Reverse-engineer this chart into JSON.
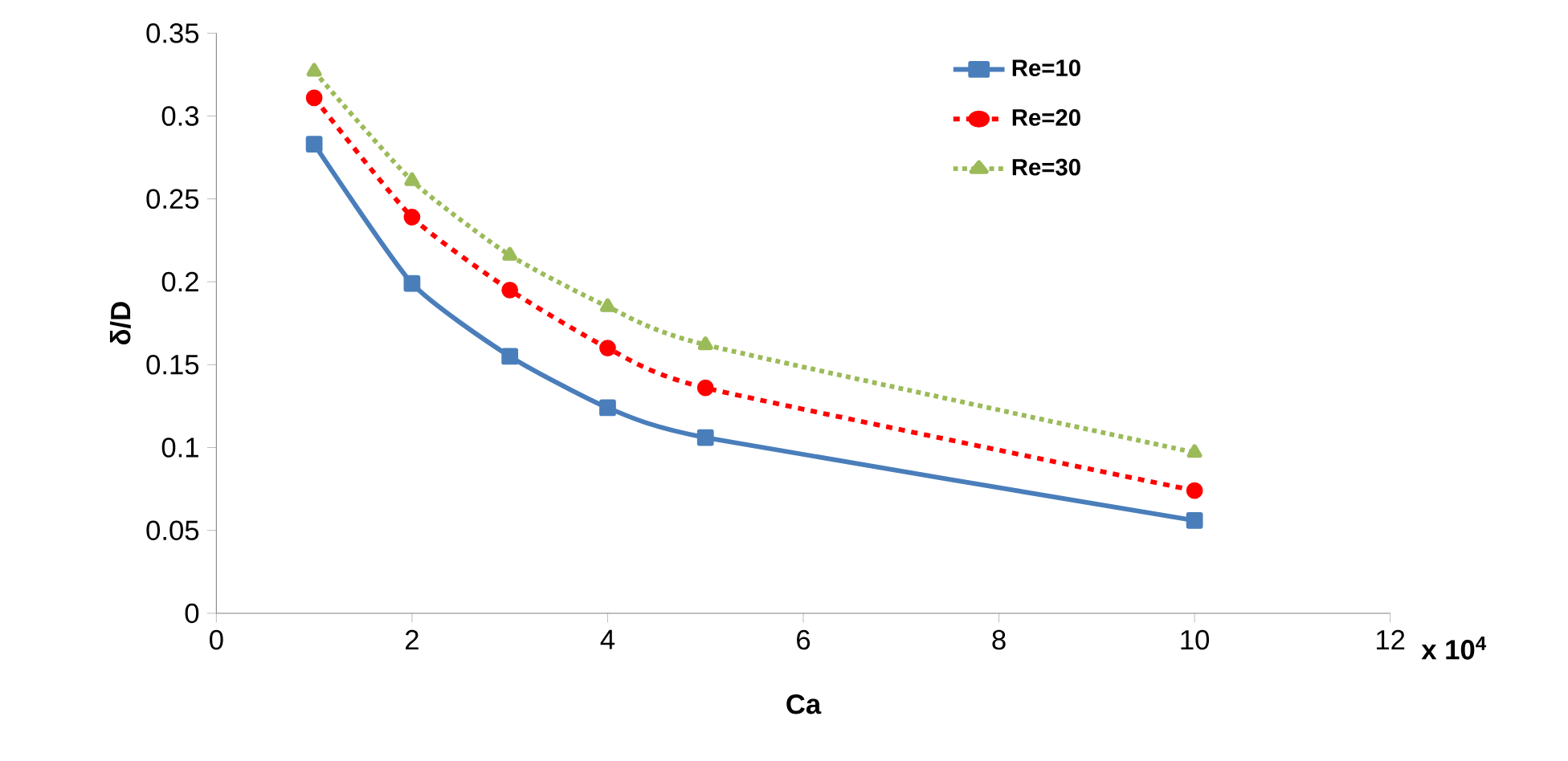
{
  "chart_data": {
    "type": "line",
    "xlabel": "Ca",
    "ylabel": "δ/D",
    "annotations": [
      "x 10$^{4}$"
    ],
    "x": [
      1,
      2,
      3,
      4,
      5,
      10
    ],
    "series": [
      {
        "name": "Re=10",
        "color": "#4a7ebb",
        "values": [
          0.283,
          0.199,
          0.155,
          0.124,
          0.106,
          0.056
        ],
        "marker": "square",
        "line_style": "solid"
      },
      {
        "name": "Re=20",
        "color": "#ff0000",
        "values": [
          0.311,
          0.239,
          0.195,
          0.16,
          0.136,
          0.074
        ],
        "marker": "circle",
        "line_style": "dashed"
      },
      {
        "name": "Re=30",
        "color": "#9bbb59",
        "values": [
          0.327,
          0.261,
          0.216,
          0.185,
          0.162,
          0.097
        ],
        "marker": "triangle",
        "line_style": "dotted"
      }
    ],
    "xlim": [
      0,
      12
    ],
    "ylim": [
      0,
      0.35
    ],
    "xticks": [
      0,
      2,
      4,
      6,
      8,
      10,
      12
    ],
    "yticks": [
      0,
      0.05,
      0.1,
      0.15,
      0.2,
      0.25,
      0.3,
      0.35
    ],
    "grid": false,
    "legend": "top right"
  }
}
